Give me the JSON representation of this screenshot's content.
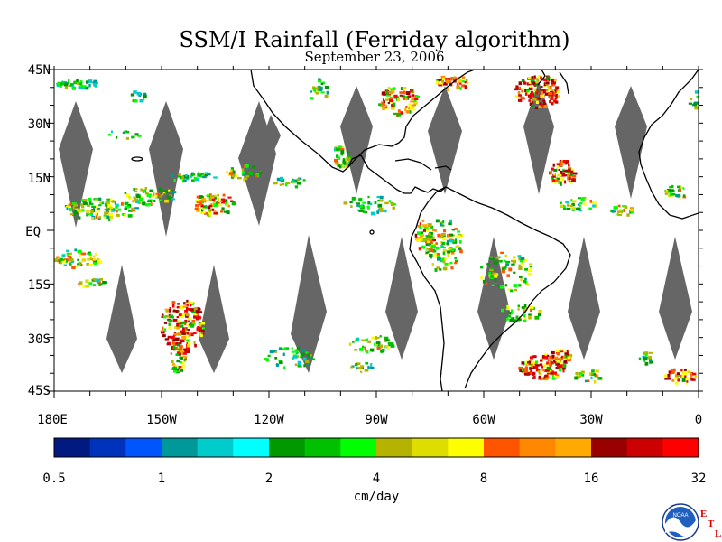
{
  "map": {
    "title": "SSM/I Rainfall (Ferriday algorithm)",
    "subtitle": "September 23, 2006",
    "lat_labels": [
      "45N",
      "30N",
      "15N",
      "EQ",
      "15S",
      "30S",
      "45S"
    ],
    "lon_labels": [
      "180E",
      "150W",
      "120W",
      "90W",
      "60W",
      "30W",
      "0"
    ],
    "lat_range": [
      -45,
      45
    ],
    "lon_range": [
      -180,
      0
    ],
    "no_data_color": "#666666",
    "coast_color": "#000000"
  },
  "colorbar": {
    "unit": "cm/day",
    "tick_labels": [
      "0.5",
      "1",
      "2",
      "4",
      "8",
      "16",
      "32"
    ],
    "colors": [
      "#001a80",
      "#0033bb",
      "#0055ff",
      "#009999",
      "#00cccc",
      "#00ffff",
      "#009900",
      "#00c000",
      "#00ff00",
      "#b3b300",
      "#dddd00",
      "#ffff00",
      "#ff5500",
      "#ff8800",
      "#ffaa00",
      "#990000",
      "#cc0000",
      "#ff0000"
    ]
  },
  "logo": {
    "agency": "NOAA",
    "letters": [
      "E",
      "T",
      "L"
    ],
    "letter_color": "#dd0000"
  }
}
